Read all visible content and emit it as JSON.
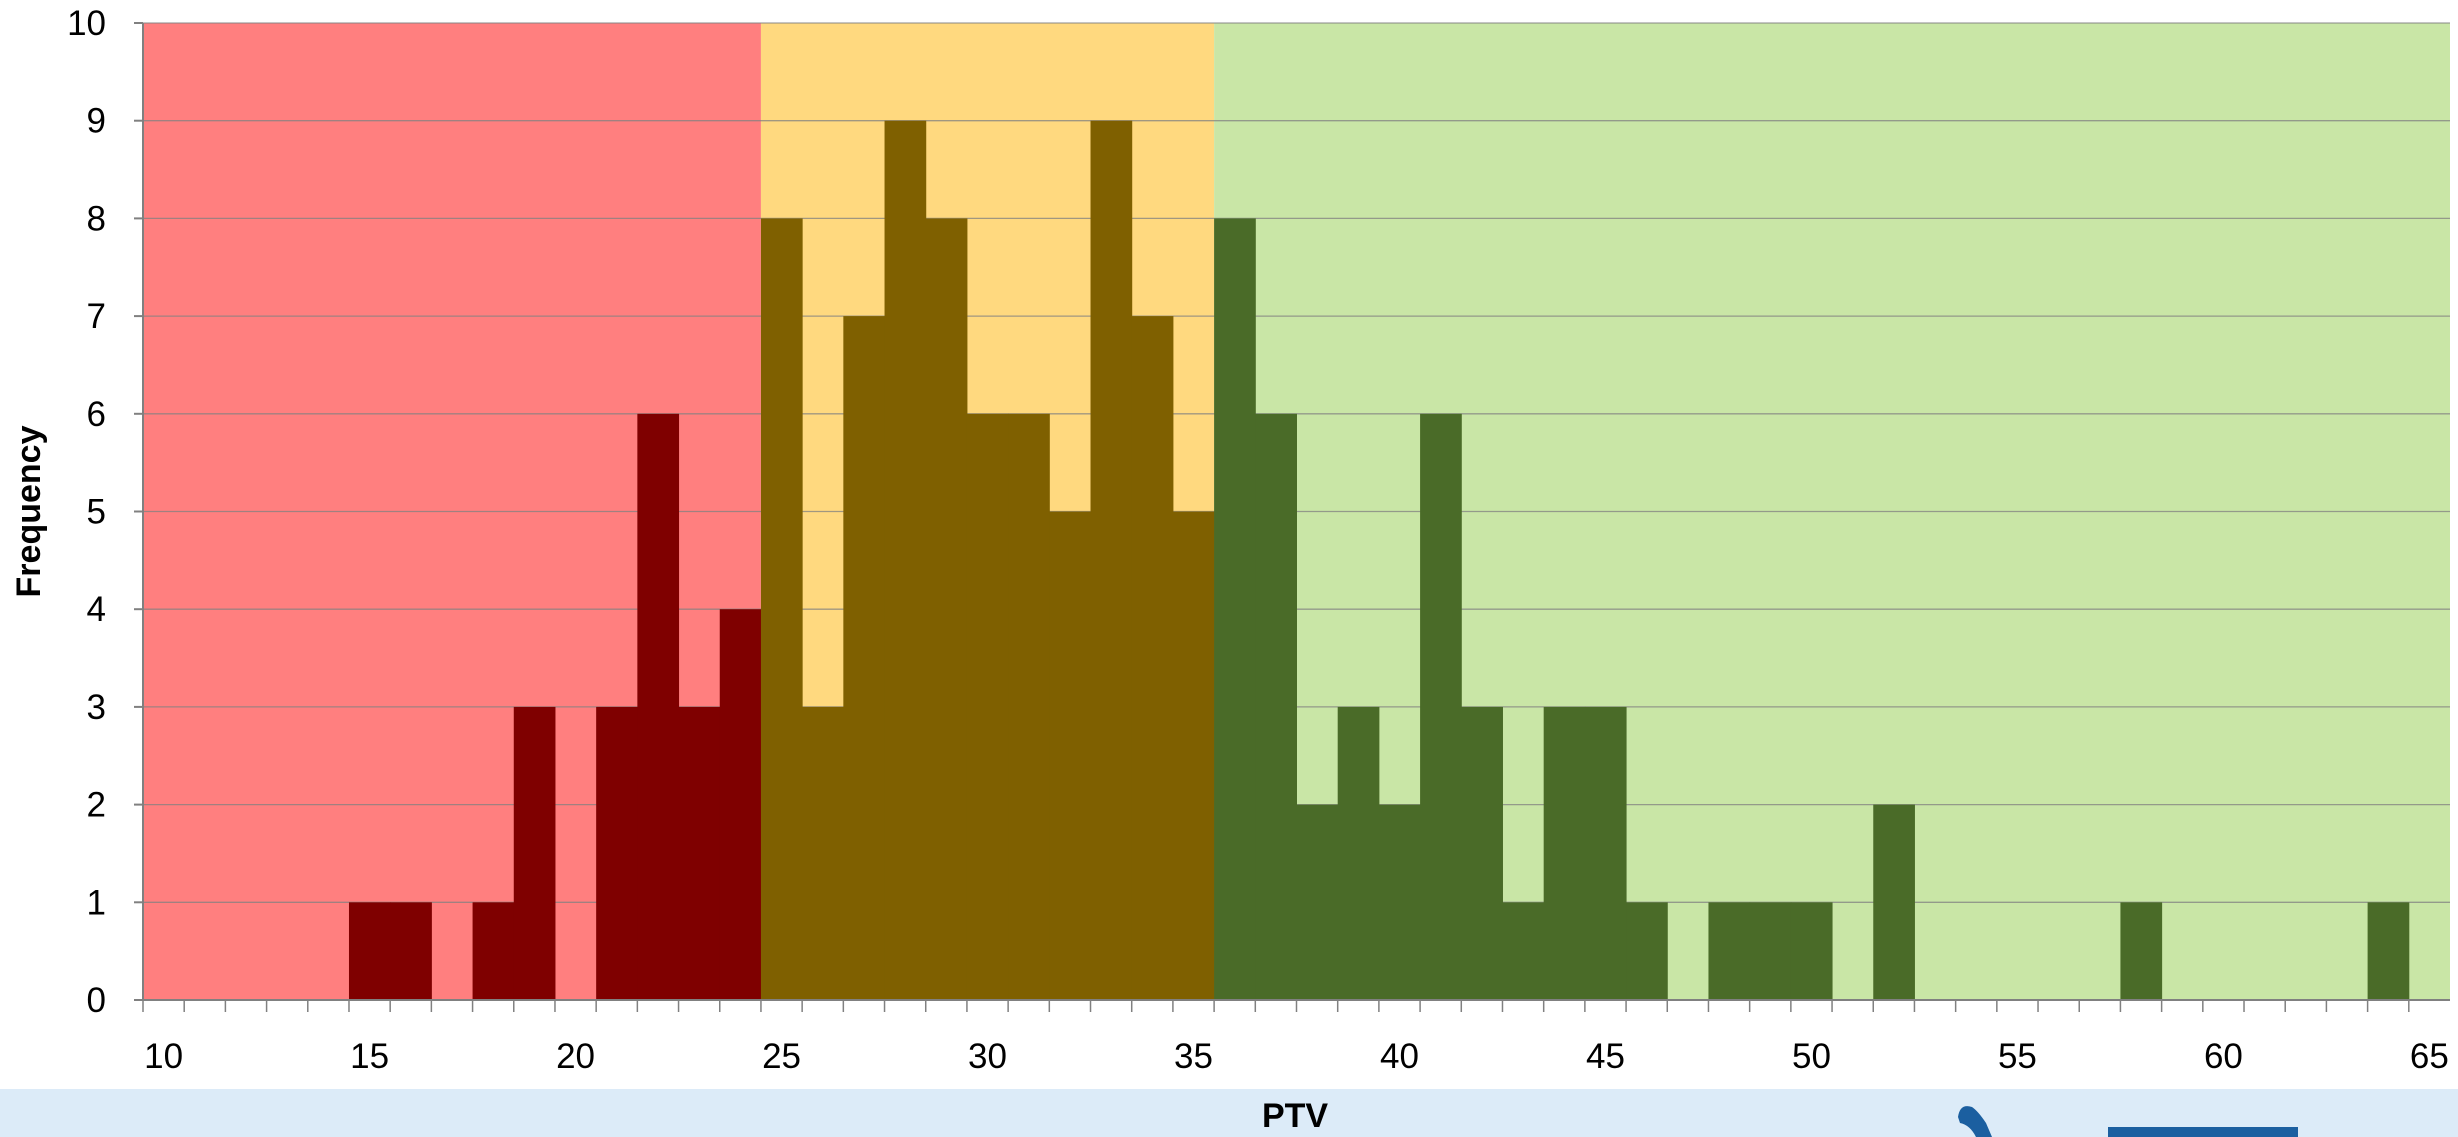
{
  "chart_data": {
    "type": "bar",
    "title": "",
    "xlabel": "PTV",
    "ylabel": "Frequency",
    "xlim": [
      9.5,
      65.5
    ],
    "ylim": [
      0,
      10
    ],
    "x_ticks": [
      10,
      15,
      20,
      25,
      30,
      35,
      40,
      45,
      50,
      55,
      60,
      65
    ],
    "y_ticks": [
      0,
      1,
      2,
      3,
      4,
      5,
      6,
      7,
      8,
      9,
      10
    ],
    "grid": true,
    "bin_width": 1,
    "bins": [
      {
        "x": 15,
        "value": 1
      },
      {
        "x": 16,
        "value": 1
      },
      {
        "x": 18,
        "value": 1
      },
      {
        "x": 19,
        "value": 3
      },
      {
        "x": 21,
        "value": 3
      },
      {
        "x": 22,
        "value": 6
      },
      {
        "x": 23,
        "value": 3
      },
      {
        "x": 24,
        "value": 4
      },
      {
        "x": 25,
        "value": 8
      },
      {
        "x": 26,
        "value": 3
      },
      {
        "x": 27,
        "value": 7
      },
      {
        "x": 28,
        "value": 9
      },
      {
        "x": 29,
        "value": 8
      },
      {
        "x": 30,
        "value": 6
      },
      {
        "x": 31,
        "value": 6
      },
      {
        "x": 32,
        "value": 5
      },
      {
        "x": 33,
        "value": 9
      },
      {
        "x": 34,
        "value": 7
      },
      {
        "x": 35,
        "value": 5
      },
      {
        "x": 36,
        "value": 8
      },
      {
        "x": 37,
        "value": 6
      },
      {
        "x": 38,
        "value": 2
      },
      {
        "x": 39,
        "value": 3
      },
      {
        "x": 40,
        "value": 2
      },
      {
        "x": 41,
        "value": 6
      },
      {
        "x": 42,
        "value": 3
      },
      {
        "x": 43,
        "value": 1
      },
      {
        "x": 44,
        "value": 3
      },
      {
        "x": 45,
        "value": 3
      },
      {
        "x": 46,
        "value": 1
      },
      {
        "x": 48,
        "value": 1
      },
      {
        "x": 49,
        "value": 1
      },
      {
        "x": 50,
        "value": 1
      },
      {
        "x": 52,
        "value": 2
      },
      {
        "x": 58,
        "value": 1
      },
      {
        "x": 64,
        "value": 1
      }
    ],
    "zones": [
      {
        "from": 9.5,
        "to": 24.5,
        "background": "#ff7f7f",
        "bar_color": "#7f0000"
      },
      {
        "from": 24.5,
        "to": 35.5,
        "background": "#ffd97f",
        "bar_color": "#7f6000"
      },
      {
        "from": 35.5,
        "to": 65.5,
        "background": "#c9e6a6",
        "bar_color": "#4a6b28"
      }
    ]
  },
  "colors": {
    "gridline": "#808080",
    "axis": "#808080",
    "footer_band": "#dcebf8",
    "logo": "#1b5fa0"
  }
}
